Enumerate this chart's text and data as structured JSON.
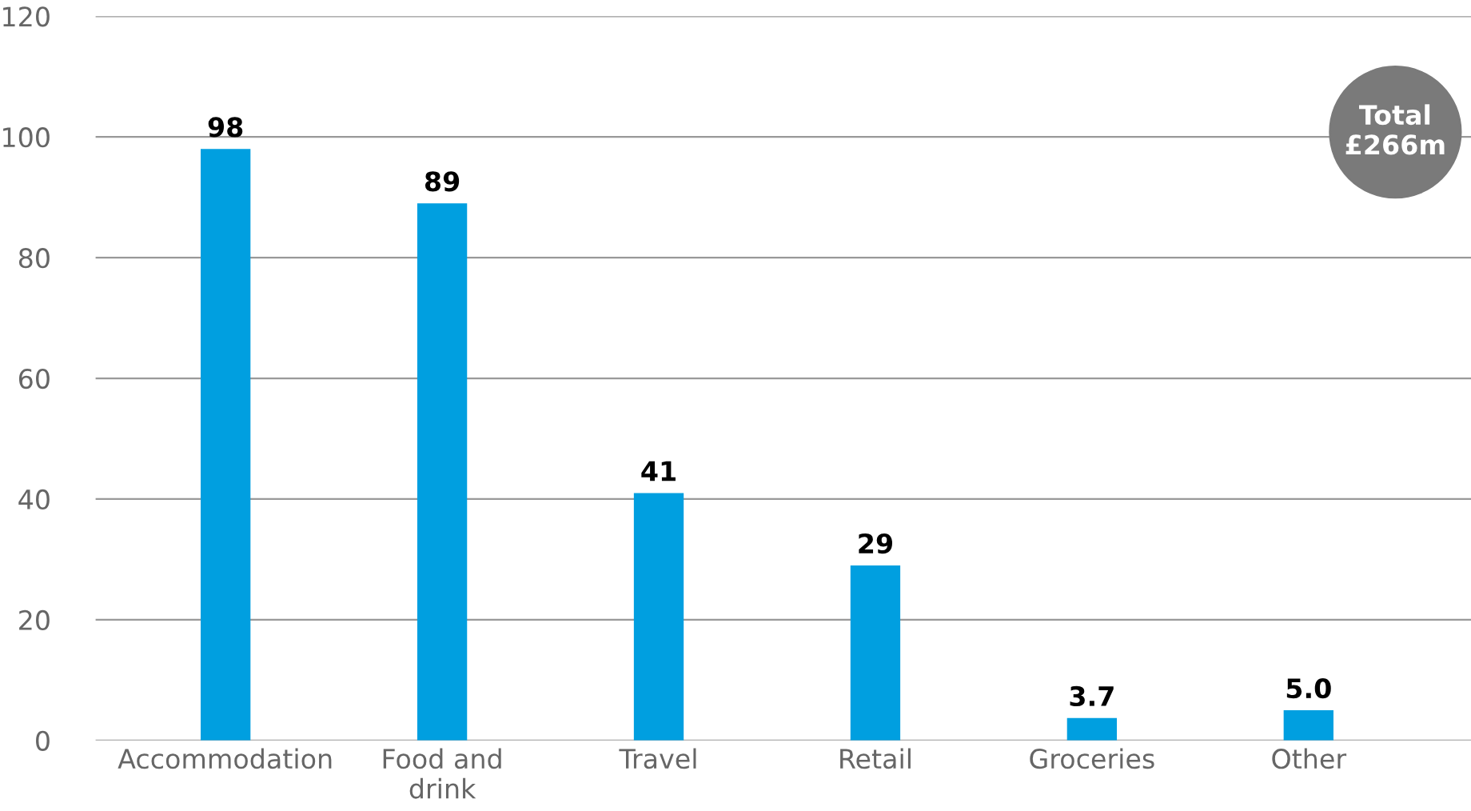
{
  "chart_data": {
    "type": "bar",
    "categories": [
      "Accommodation",
      "Food and\ndrink",
      "Travel",
      "Retail",
      "Groceries",
      "Other"
    ],
    "values": [
      98,
      89,
      41,
      29,
      3.7,
      5.0
    ],
    "value_labels": [
      "98",
      "89",
      "41",
      "29",
      "3.7",
      "5.0"
    ],
    "color": "#009fe0",
    "ylim": [
      0,
      120
    ],
    "yticks": [
      0,
      20,
      40,
      60,
      80,
      100,
      120
    ],
    "grid": "y",
    "annotations": [
      "Total\n£266m"
    ]
  }
}
